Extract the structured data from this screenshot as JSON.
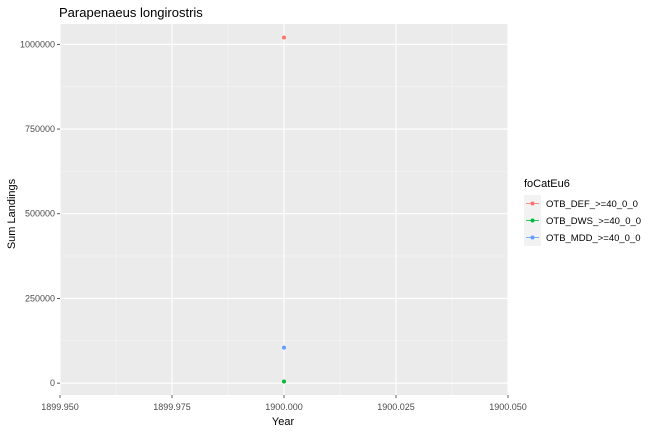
{
  "chart_data": {
    "type": "scatter",
    "title": "Parapenaeus longirostris",
    "xlabel": "Year",
    "ylabel": "Sum Landings",
    "xlim": [
      1899.95,
      1900.05
    ],
    "ylim": [
      -35000,
      1060000
    ],
    "x_ticks": [
      1899.95,
      1899.975,
      1900.0,
      1900.025,
      1900.05
    ],
    "x_tick_labels": [
      "1899.950",
      "1899.975",
      "1900.000",
      "1900.025",
      "1900.050"
    ],
    "y_ticks": [
      0,
      250000,
      500000,
      750000,
      1000000
    ],
    "y_tick_labels": [
      "0",
      "250000",
      "500000",
      "750000",
      "1000000"
    ],
    "grid": true,
    "legend_position": "right",
    "legend_title": "foCatEu6",
    "series": [
      {
        "name": "OTB_DEF_>=40_0_0",
        "color": "#F8766D",
        "points": [
          {
            "x": 1900.0,
            "y": 1020000
          }
        ]
      },
      {
        "name": "OTB_DWS_>=40_0_0",
        "color": "#00BA38",
        "points": [
          {
            "x": 1900.0,
            "y": 5000
          }
        ]
      },
      {
        "name": "OTB_MDD_>=40_0_0",
        "color": "#619CFF",
        "points": [
          {
            "x": 1900.0,
            "y": 105000
          }
        ]
      }
    ]
  }
}
